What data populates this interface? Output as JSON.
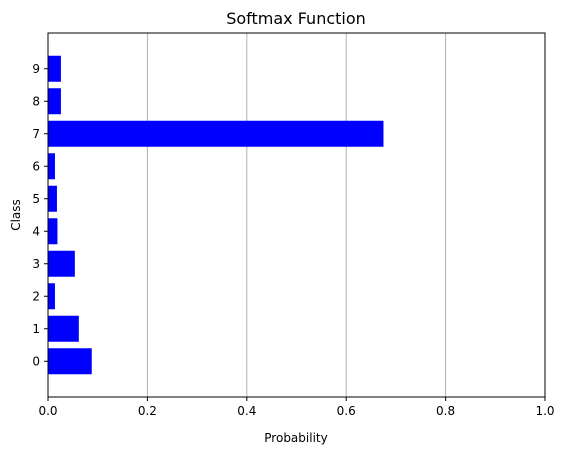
{
  "chart_data": {
    "type": "bar",
    "orientation": "horizontal",
    "title": "Softmax Function",
    "xlabel": "Probability",
    "ylabel": "Class",
    "categories": [
      "0",
      "1",
      "2",
      "3",
      "4",
      "5",
      "6",
      "7",
      "8",
      "9"
    ],
    "values": [
      0.088,
      0.062,
      0.014,
      0.054,
      0.019,
      0.018,
      0.014,
      0.675,
      0.026,
      0.026
    ],
    "xlim": [
      0,
      1
    ],
    "xticks": [
      "0.0",
      "0.2",
      "0.4",
      "0.6",
      "0.8",
      "1.0"
    ],
    "grid": "x-axis vertical lines",
    "legend": "none",
    "colors": {
      "bar": "#0000ff",
      "grid": "#b0b0b0",
      "axis": "#000000"
    }
  }
}
